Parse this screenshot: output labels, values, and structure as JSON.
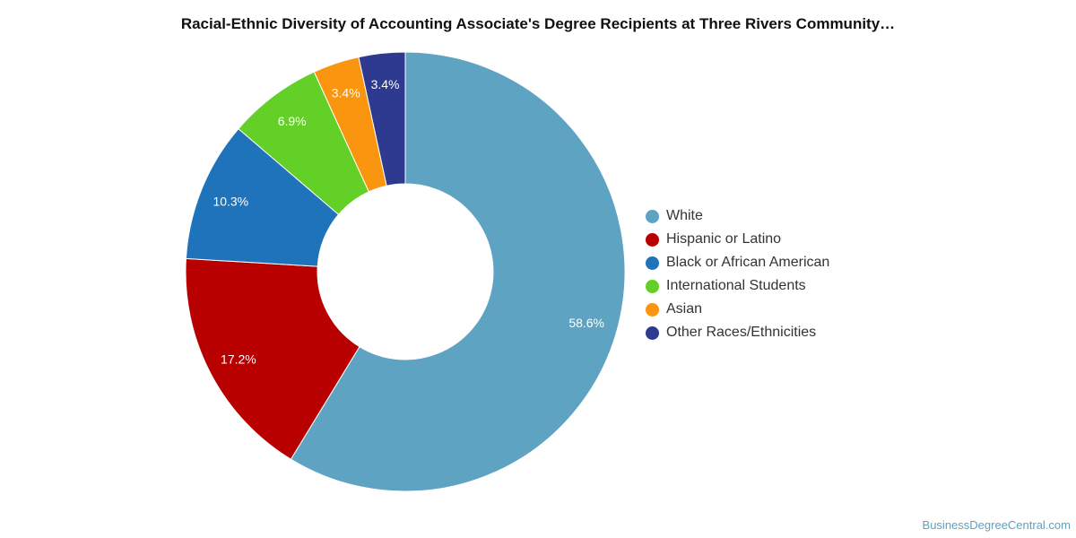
{
  "chart_data": {
    "type": "pie",
    "variant": "donut",
    "title": "Racial-Ethnic Diversity of Accounting Associate's Degree Recipients at Three Rivers Community…",
    "categories": [
      "White",
      "Hispanic or Latino",
      "Black or African American",
      "International Students",
      "Asian",
      "Other Races/Ethnicities"
    ],
    "values": [
      58.6,
      17.2,
      10.3,
      6.9,
      3.4,
      3.4
    ],
    "labels": [
      "58.6%",
      "17.2%",
      "10.3%",
      "6.9%",
      "3.4%",
      "3.4%"
    ],
    "colors": [
      "#5ea3c1",
      "#b80000",
      "#1f73bb",
      "#62d026",
      "#f9950f",
      "#2e3a8f"
    ],
    "legend_position": "right"
  },
  "credit": "BusinessDegreeCentral.com"
}
